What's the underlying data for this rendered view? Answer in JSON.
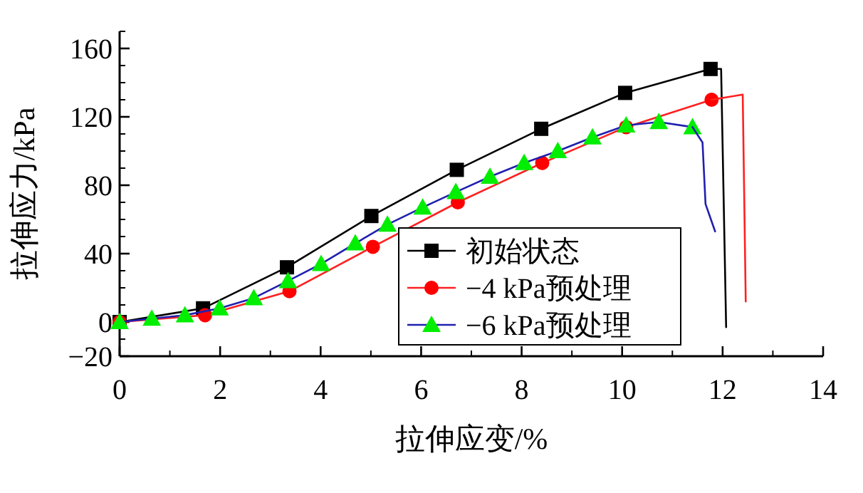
{
  "chart_data": {
    "type": "line",
    "xlabel": "拉伸应变/%",
    "ylabel": "拉伸应力/kPa",
    "xlim": [
      0,
      14
    ],
    "xticks": [
      0,
      2,
      4,
      6,
      8,
      10,
      12,
      14
    ],
    "ylim": [
      -20,
      170
    ],
    "yticks": [
      -20,
      0,
      40,
      80,
      120,
      160
    ],
    "legend": "bottom",
    "grid": false,
    "line_style": "solid",
    "series": [
      {
        "name": "初始状态",
        "color": "#000000",
        "colors": [
          "#000000",
          "#000000",
          "#000000",
          "#000000",
          "#000000",
          "#000000",
          "#000000",
          "#000000"
        ],
        "marker": "square",
        "x": [
          0,
          1.66,
          3.33,
          5.01,
          6.71,
          8.39,
          10.06,
          11.76
        ],
        "values": [
          0,
          8,
          32,
          62,
          89,
          113,
          134,
          148
        ]
      },
      {
        "color": "#000000",
        "marker": "none",
        "x": [
          11.76,
          11.97,
          12.07
        ],
        "values": [
          148,
          148,
          -3
        ]
      },
      {
        "name": "−4 kPa预处理",
        "color": "#ff2020",
        "colors": [
          "#ff0000",
          "#ff0000",
          "#ff0000",
          "#ff0000",
          "#ff0000",
          "#ff0000",
          "#ff0000",
          "#ff0000"
        ],
        "marker": "circle",
        "x": [
          0,
          1.7,
          3.38,
          5.04,
          6.73,
          8.41,
          10.08,
          11.78
        ],
        "values": [
          0,
          4,
          18,
          44,
          70,
          93,
          114,
          130
        ]
      },
      {
        "color": "#ff2020",
        "marker": "none",
        "x": [
          11.78,
          12.4,
          12.46
        ],
        "values": [
          130,
          133,
          12
        ]
      },
      {
        "name": "−6 kPa预处理",
        "color": "#2020b0",
        "colors": [
          "#00ee00",
          "#00ee00",
          "#00ee00",
          "#00ee00",
          "#00ee00",
          "#00ee00",
          "#00ee00",
          "#00ee00",
          "#00ee00",
          "#00ee00",
          "#00ee00",
          "#00ee00",
          "#00ee00",
          "#00ee00",
          "#00ee00",
          "#00ee00",
          "#00ee00",
          "#00ee00"
        ],
        "marker": "triangle",
        "x": [
          0,
          0.64,
          1.3,
          1.99,
          2.67,
          3.35,
          4.01,
          4.69,
          5.33,
          6.03,
          6.69,
          7.37,
          8.05,
          8.72,
          9.41,
          10.08,
          10.73,
          11.4
        ],
        "values": [
          0,
          2,
          4,
          8,
          14,
          24,
          34,
          46,
          57,
          67,
          76,
          85,
          93,
          100,
          108,
          115,
          117,
          114
        ]
      },
      {
        "color": "#2020b0",
        "marker": "none",
        "x": [
          11.4,
          11.6,
          11.66,
          11.85
        ],
        "values": [
          114,
          105,
          69,
          53
        ]
      }
    ]
  }
}
